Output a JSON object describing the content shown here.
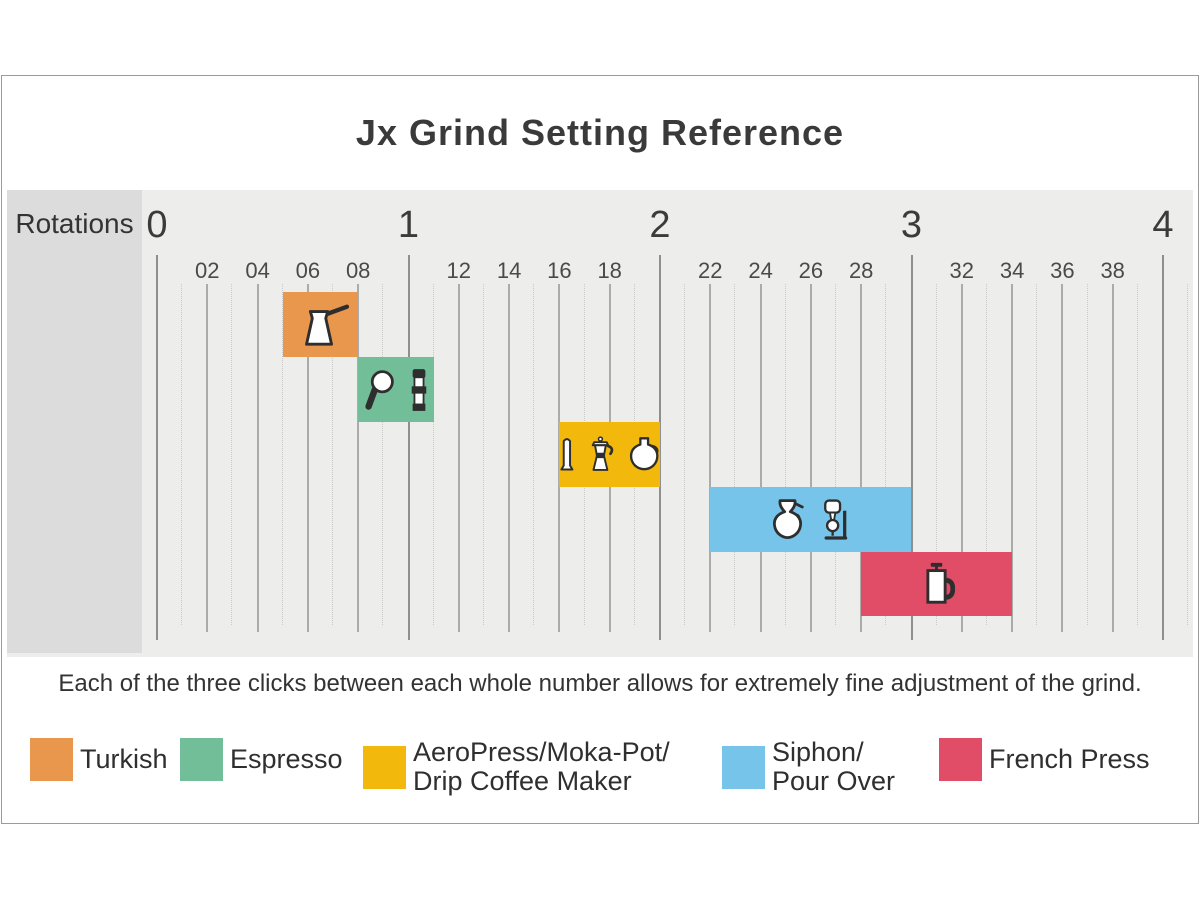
{
  "title": "Jx Grind Setting Reference",
  "axis": {
    "label": "Rotations",
    "whole_ticks": [
      "0",
      "1",
      "2",
      "3",
      "4"
    ],
    "minor_tick_labels": [
      "02",
      "04",
      "06",
      "08",
      "12",
      "14",
      "16",
      "18",
      "22",
      "24",
      "26",
      "28",
      "32",
      "34",
      "36",
      "38"
    ]
  },
  "caption": "Each of the three clicks between each whole number allows for extremely fine adjustment of the grind.",
  "colors": {
    "turkish": "#E9974D",
    "espresso": "#72BE98",
    "aeropress_moka_drip": "#F2B90C",
    "siphon_pour_over": "#76C4E9",
    "french_press": "#E14C67",
    "plot_background": "#EDEDEC",
    "axis_label_box": "#DCDCDC"
  },
  "chart_data": {
    "type": "bar",
    "subtype": "horizontal-range-bands",
    "title": "Jx Grind Setting Reference",
    "xlabel": "Rotations",
    "xlim": [
      0,
      4
    ],
    "minor_tick_interval": 0.1,
    "grid": true,
    "series": [
      {
        "name": "Turkish",
        "start": 0.5,
        "end": 0.8,
        "row": 0,
        "color": "#E9974D",
        "icons": [
          "cezve-icon"
        ]
      },
      {
        "name": "Espresso",
        "start": 0.8,
        "end": 1.1,
        "row": 1,
        "color": "#72BE98",
        "icons": [
          "portafilter-icon",
          "tamper-icon"
        ]
      },
      {
        "name": "AeroPress/Moka-Pot/Drip Coffee Maker",
        "start": 1.6,
        "end": 2.0,
        "row": 2,
        "color": "#F2B90C",
        "icons": [
          "aeropress-icon",
          "moka-pot-icon",
          "drip-carafe-icon"
        ]
      },
      {
        "name": "Siphon/Pour Over",
        "start": 2.2,
        "end": 3.0,
        "row": 3,
        "color": "#76C4E9",
        "icons": [
          "pour-over-icon",
          "siphon-icon"
        ]
      },
      {
        "name": "French Press",
        "start": 2.8,
        "end": 3.4,
        "row": 4,
        "color": "#E14C67",
        "icons": [
          "french-press-icon"
        ]
      }
    ]
  },
  "legend": [
    {
      "color": "#E9974D",
      "lines": [
        "Turkish"
      ]
    },
    {
      "color": "#72BE98",
      "lines": [
        "Espresso"
      ]
    },
    {
      "color": "#F2B90C",
      "lines": [
        "AeroPress/Moka-Pot/",
        "Drip Coffee Maker"
      ]
    },
    {
      "color": "#76C4E9",
      "lines": [
        "Siphon/",
        "Pour Over"
      ]
    },
    {
      "color": "#E14C67",
      "lines": [
        "French Press"
      ]
    }
  ]
}
